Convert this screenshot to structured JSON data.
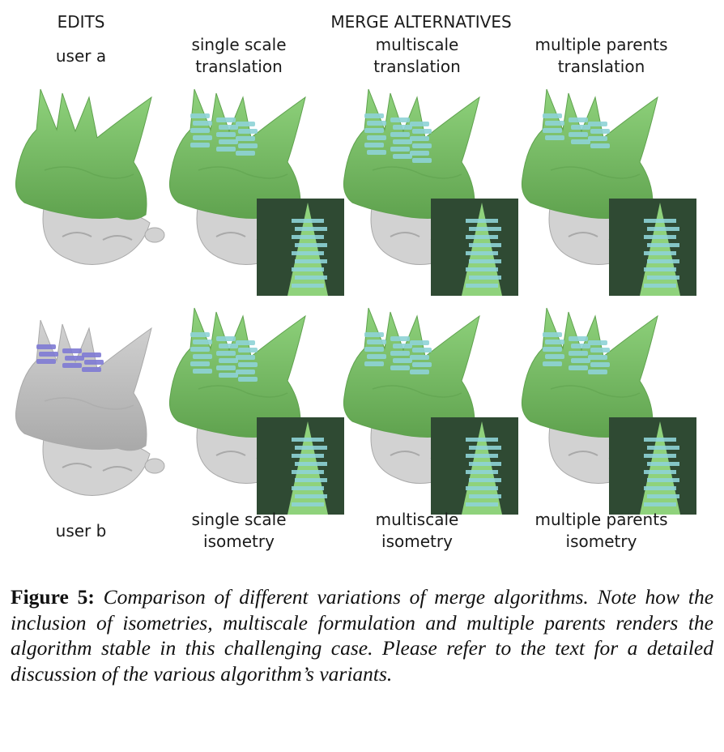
{
  "header": {
    "edits": "EDITS",
    "merge_alternatives": "MERGE ALTERNATIVES"
  },
  "labels": {
    "user_a": "user a",
    "user_b": "user b",
    "top": [
      {
        "line1": "single scale",
        "line2": "translation"
      },
      {
        "line1": "multiscale",
        "line2": "translation"
      },
      {
        "line1": "multiple parents",
        "line2": "translation"
      }
    ],
    "bottom": [
      {
        "line1": "single scale",
        "line2": "isometry"
      },
      {
        "line1": "multiscale",
        "line2": "isometry"
      },
      {
        "line1": "multiple parents",
        "line2": "isometry"
      }
    ]
  },
  "colors": {
    "green": "#8fd27c",
    "green_dark": "#5fa24e",
    "gray": "#d2d2d2",
    "gray_dark": "#a9a9a9",
    "blue": "#8ed3d6",
    "purple": "#7e7ad4",
    "inset_dark": "#2f4a33"
  },
  "caption": {
    "figure_label": "Figure 5:",
    "text": "Comparison of different variations of merge algorithms. Note how the inclusion of isometries, multiscale formulation and multiple parents renders the algorithm stable in this challenging case. Please refer to the text for a detailed discussion of the various algorithm’s variants."
  }
}
